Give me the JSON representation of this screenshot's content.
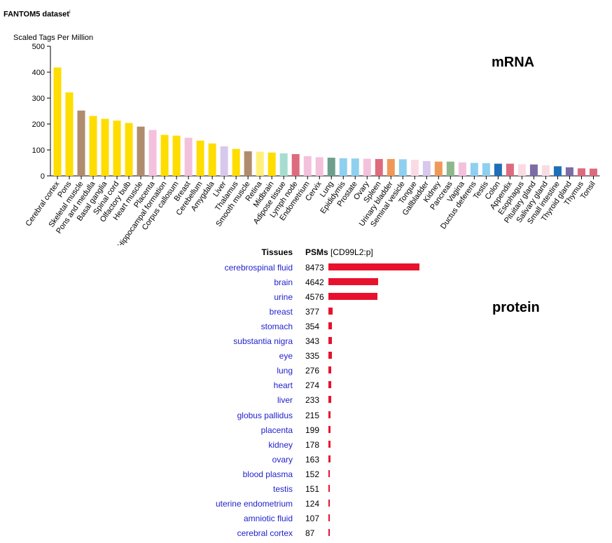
{
  "dataset_title": "FANTOM5 dataset",
  "info_mark": "i",
  "mrna_label": "mRNA",
  "protein_label": "protein",
  "colors": {
    "protein_bar": "#e8112d",
    "tissue_link": "#2222cc"
  },
  "chart_data": [
    {
      "type": "bar",
      "title": "",
      "ylabel": "Scaled Tags Per Million",
      "xlabel": "",
      "ylim": [
        0,
        500
      ],
      "yticks": [
        0,
        100,
        200,
        300,
        400,
        500
      ],
      "grid": false,
      "categories": [
        "Cerebral cortex",
        "Pons",
        "Skeletal muscle",
        "Pons and medulla",
        "Basal ganglia",
        "Spinal cord",
        "Olfactory bulb",
        "Heart muscle",
        "Placenta",
        "Hippocampal formation",
        "Corpus callosum",
        "Breast",
        "Cerebellum",
        "Amygdala",
        "Liver",
        "Thalamus",
        "Smooth muscle",
        "Retina",
        "Midbrain",
        "Adipose tissue",
        "Lymph node",
        "Endometrium",
        "Cervix",
        "Lung",
        "Epididymis",
        "Prostate",
        "Ovary",
        "Spleen",
        "Urinary bladder",
        "Seminal vesicle",
        "Tongue",
        "Gallbladder",
        "Kidney",
        "Pancreas",
        "Vagina",
        "Ductus deferens",
        "Testis",
        "Colon",
        "Appendix",
        "Esophagus",
        "Pituitary gland",
        "Salivary gland",
        "Small intestine",
        "Thyroid gland",
        "Thymus",
        "Tonsil"
      ],
      "values": [
        418,
        322,
        252,
        231,
        220,
        213,
        204,
        190,
        177,
        158,
        155,
        147,
        136,
        125,
        114,
        104,
        95,
        93,
        90,
        87,
        84,
        76,
        72,
        70,
        68,
        67,
        66,
        65,
        65,
        64,
        62,
        57,
        55,
        55,
        52,
        50,
        49,
        47,
        47,
        45,
        44,
        41,
        37,
        33,
        29,
        28
      ],
      "bar_colors": [
        "#ffdd00",
        "#ffdd00",
        "#b08c6e",
        "#ffdd00",
        "#ffdd00",
        "#ffdd00",
        "#ffdd00",
        "#b08c6e",
        "#f4c1dd",
        "#ffdd00",
        "#ffdd00",
        "#f4c1dd",
        "#ffdd00",
        "#ffdd00",
        "#d8c8ec",
        "#ffdd00",
        "#b08c6e",
        "#fff07a",
        "#ffdd00",
        "#a6ddd0",
        "#de6a7e",
        "#f4c1dd",
        "#f4c1dd",
        "#6d9f8c",
        "#8fd0f0",
        "#8fd0f0",
        "#f4c1dd",
        "#de6a7e",
        "#f0985a",
        "#8fd0f0",
        "#fadbe4",
        "#d8c8ec",
        "#f0985a",
        "#8db88c",
        "#f4c1dd",
        "#8fd0f0",
        "#8fd0f0",
        "#1f6fb8",
        "#de6a7e",
        "#fadbe4",
        "#7d6ba6",
        "#fadbe4",
        "#1f6fb8",
        "#7d6ba6",
        "#de6a7e",
        "#de6a7e"
      ]
    },
    {
      "type": "bar",
      "orientation": "horizontal",
      "title": "",
      "header_label": "Tissues",
      "header_value": "PSMs",
      "header_suffix": "[CD99L2:p]",
      "categories": [
        "cerebrospinal fluid",
        "brain",
        "urine",
        "breast",
        "stomach",
        "substantia nigra",
        "eye",
        "lung",
        "heart",
        "liver",
        "globus pallidus",
        "placenta",
        "kidney",
        "ovary",
        "blood plasma",
        "testis",
        "uterine endometrium",
        "amniotic fluid",
        "cerebral cortex"
      ],
      "values": [
        8473,
        4642,
        4576,
        377,
        354,
        343,
        335,
        276,
        274,
        233,
        215,
        199,
        178,
        163,
        152,
        151,
        124,
        107,
        87
      ]
    }
  ]
}
